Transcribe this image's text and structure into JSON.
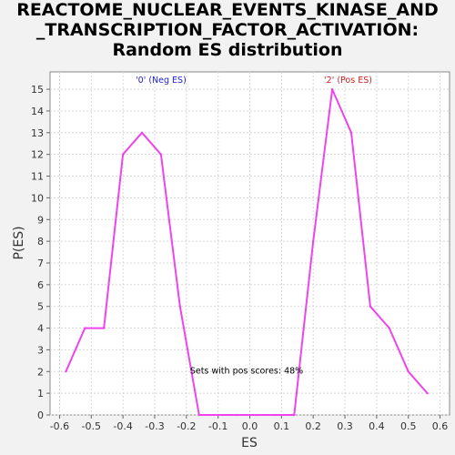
{
  "chart_data": {
    "type": "line",
    "title_lines": [
      "REACTOME_NUCLEAR_EVENTS_KINASE_AND",
      "_TRANSCRIPTION_FACTOR_ACTIVATION:",
      "Random ES distribution"
    ],
    "xlabel": "ES",
    "ylabel": "P(ES)",
    "xlim": [
      -0.63,
      0.63
    ],
    "ylim": [
      0,
      15.8
    ],
    "xticks": [
      -0.6,
      -0.5,
      -0.4,
      -0.3,
      -0.2,
      -0.1,
      0.0,
      0.1,
      0.2,
      0.3,
      0.4,
      0.5,
      0.6
    ],
    "xtick_labels": [
      "-0.6",
      "-0.5",
      "-0.4",
      "-0.3",
      "-0.2",
      "-0.1",
      "0.0",
      "0.1",
      "0.2",
      "0.3",
      "0.4",
      "0.5",
      "0.6"
    ],
    "yticks": [
      0,
      1,
      2,
      3,
      4,
      5,
      6,
      7,
      8,
      9,
      10,
      11,
      12,
      13,
      14,
      15
    ],
    "ytick_labels": [
      "0",
      "1",
      "2",
      "3",
      "4",
      "5",
      "6",
      "7",
      "8",
      "9",
      "10",
      "11",
      "12",
      "13",
      "14",
      "15"
    ],
    "grid": true,
    "series": [
      {
        "color": "#ee44ee",
        "x": [
          -0.58,
          -0.52,
          -0.46,
          -0.4,
          -0.34,
          -0.28,
          -0.22,
          -0.16,
          -0.1,
          -0.04,
          0.02,
          0.08,
          0.14,
          0.2,
          0.26,
          0.32,
          0.38,
          0.44,
          0.5,
          0.56
        ],
        "y": [
          2,
          4,
          4,
          12,
          13,
          12,
          5,
          0,
          0,
          0,
          0,
          0,
          0,
          8,
          15,
          13,
          5,
          4,
          2,
          1
        ]
      }
    ],
    "annotations": [
      {
        "text": "'0' (Neg ES)",
        "x": -0.28,
        "y": 15.3,
        "color": "#2222cc"
      },
      {
        "text": "'2' (Pos ES)",
        "x": 0.31,
        "y": 15.3,
        "color": "#cc2222"
      },
      {
        "text": "Sets with pos scores: 48%",
        "x": -0.01,
        "y": 1.9,
        "color": "#000000"
      }
    ]
  }
}
